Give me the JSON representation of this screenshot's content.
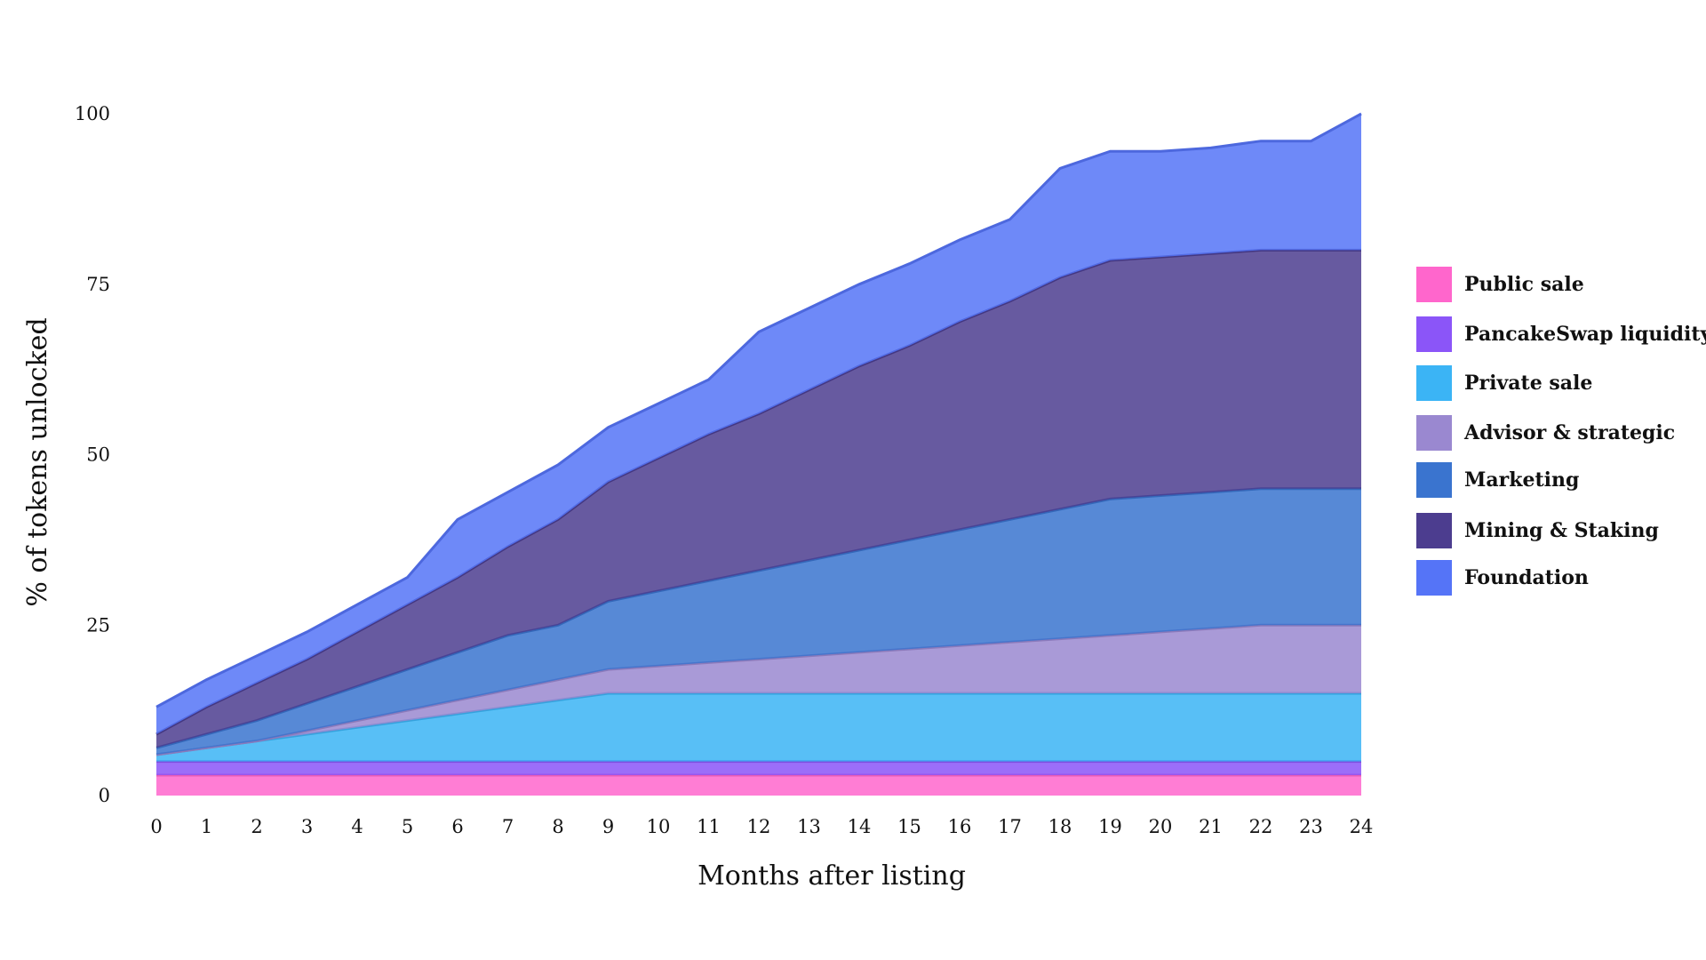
{
  "chart_data": {
    "type": "area",
    "stacked": true,
    "title": "",
    "xlabel": "Months after listing",
    "ylabel": "% of tokens unlocked",
    "x": [
      0,
      1,
      2,
      3,
      4,
      5,
      6,
      7,
      8,
      9,
      10,
      11,
      12,
      13,
      14,
      15,
      16,
      17,
      18,
      19,
      20,
      21,
      22,
      23,
      24
    ],
    "xlim": [
      0,
      24
    ],
    "ylim": [
      0,
      100
    ],
    "yticks": [
      0,
      25,
      50,
      75,
      100
    ],
    "grid": false,
    "legend_position": "right",
    "series": [
      {
        "name": "Public sale",
        "color": "#ff66cc",
        "values": [
          3,
          3,
          3,
          3,
          3,
          3,
          3,
          3,
          3,
          3,
          3,
          3,
          3,
          3,
          3,
          3,
          3,
          3,
          3,
          3,
          3,
          3,
          3,
          3,
          3
        ]
      },
      {
        "name": "PancakeSwap  liquidity",
        "color": "#8b55f8",
        "values": [
          2,
          2,
          2,
          2,
          2,
          2,
          2,
          2,
          2,
          2,
          2,
          2,
          2,
          2,
          2,
          2,
          2,
          2,
          2,
          2,
          2,
          2,
          2,
          2,
          2
        ]
      },
      {
        "name": "Private sale",
        "color": "#3bb4f5",
        "values": [
          1,
          2,
          3,
          4,
          5,
          6,
          7,
          8,
          9,
          10,
          10,
          10,
          10,
          10,
          10,
          10,
          10,
          10,
          10,
          10,
          10,
          10,
          10,
          10,
          10
        ]
      },
      {
        "name": "Advisor & strategic",
        "color": "#9a88d0",
        "values": [
          0,
          0,
          0,
          0.5,
          1,
          1.5,
          2,
          2.5,
          3,
          3.5,
          4,
          4.5,
          5,
          5.5,
          6,
          6.5,
          7,
          7.5,
          8,
          8.5,
          9,
          9.5,
          10,
          10,
          10
        ]
      },
      {
        "name": "Marketing",
        "color": "#3a74cf",
        "values": [
          1,
          2,
          3,
          4,
          5,
          6,
          7,
          8,
          8,
          10,
          11,
          12,
          13,
          14,
          15,
          16,
          17,
          18,
          19,
          20,
          20,
          20,
          20,
          20,
          20
        ]
      },
      {
        "name": "Mining & Staking",
        "color": "#4c3d8f",
        "values": [
          2,
          4,
          5.5,
          6.5,
          8,
          9.5,
          11,
          13,
          15.5,
          17.5,
          19.5,
          21.5,
          23,
          25,
          27,
          28.5,
          30.5,
          32,
          34,
          35,
          35,
          35,
          35,
          35,
          35
        ]
      },
      {
        "name": "Foundation",
        "color": "#5574f7",
        "values": [
          4,
          4,
          4,
          4,
          4,
          4,
          8.5,
          8,
          8,
          8,
          8,
          8,
          12,
          12,
          12,
          12,
          12,
          12,
          16,
          16,
          15.5,
          15.5,
          16,
          16,
          20
        ]
      }
    ]
  }
}
